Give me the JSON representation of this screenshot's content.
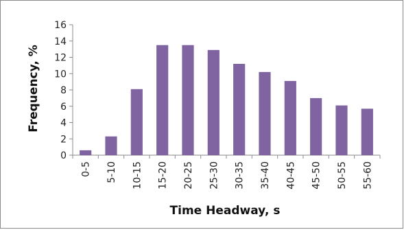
{
  "chart_data": {
    "type": "bar",
    "title": "",
    "xlabel": "Time Headway, s",
    "ylabel": "Frequency, %",
    "categories": [
      "0-5",
      "5-10",
      "10-15",
      "15-20",
      "20-25",
      "25-30",
      "30-35",
      "35-40",
      "40-45",
      "45-50",
      "50-55",
      "55-60"
    ],
    "values": [
      0.6,
      2.3,
      8.1,
      13.5,
      13.5,
      12.9,
      11.2,
      10.2,
      9.1,
      7.0,
      6.1,
      5.7
    ],
    "ylim": [
      0,
      16
    ],
    "yticks": [
      0,
      2,
      4,
      6,
      8,
      10,
      12,
      14,
      16
    ],
    "grid": false,
    "legend": "none",
    "bar_color": "#8064a2"
  }
}
